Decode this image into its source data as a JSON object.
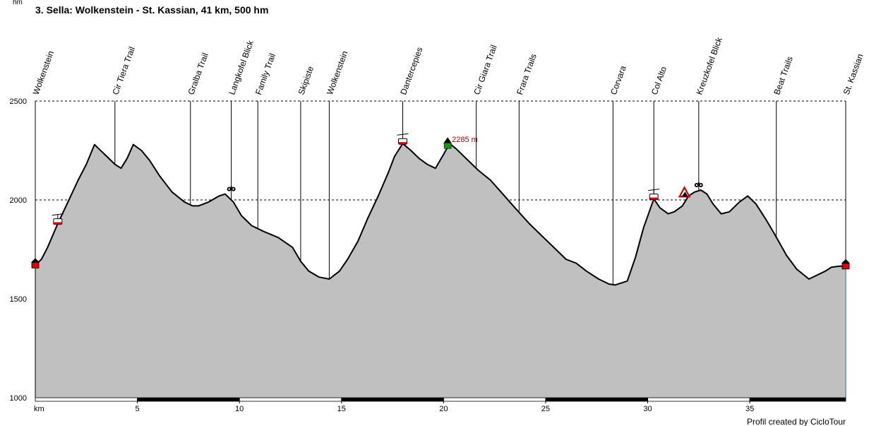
{
  "chart_data": {
    "type": "area",
    "title": "3. Sella: Wolkenstein - St. Kassian, 41 km, 500 hm",
    "ylabel": "hm",
    "xlabel": "km",
    "xlim": [
      0,
      39.7
    ],
    "ylim": [
      1000,
      2500
    ],
    "yticks": [
      1000,
      1500,
      2000,
      2500
    ],
    "xticks": [
      5,
      10,
      15,
      20,
      25,
      30,
      35
    ],
    "grid": "horizontal dashed at 1500, 2000, 2500",
    "fill_color": "#c0c0c0",
    "line_color": "#000000",
    "x": [
      0,
      0.3,
      0.6,
      1.1,
      1.6,
      2.1,
      2.5,
      2.9,
      3.1,
      3.5,
      3.9,
      4.2,
      4.5,
      4.8,
      5.2,
      5.6,
      6.1,
      6.7,
      7.3,
      7.7,
      8.0,
      8.5,
      9.0,
      9.3,
      9.7,
      10.1,
      10.6,
      11.2,
      11.9,
      12.6,
      13.0,
      13.4,
      13.9,
      14.4,
      14.9,
      15.3,
      15.8,
      16.3,
      16.8,
      17.3,
      17.6,
      18.0,
      18.4,
      18.8,
      19.2,
      19.6,
      20.0,
      20.3,
      20.6,
      21.1,
      21.7,
      22.3,
      22.9,
      23.5,
      24.2,
      24.9,
      25.5,
      26.0,
      26.5,
      27.0,
      27.6,
      28.1,
      28.4,
      29.0,
      29.4,
      29.8,
      30.3,
      30.6,
      31.0,
      31.3,
      31.7,
      32.0,
      32.3,
      32.6,
      32.9,
      33.2,
      33.6,
      34.0,
      34.5,
      34.9,
      35.3,
      35.8,
      36.2,
      36.8,
      37.3,
      37.9,
      38.3,
      38.7,
      39.0,
      39.4,
      39.7
    ],
    "y": [
      1670,
      1700,
      1760,
      1880,
      1990,
      2100,
      2180,
      2280,
      2260,
      2220,
      2180,
      2160,
      2210,
      2280,
      2250,
      2200,
      2120,
      2040,
      1990,
      1970,
      1970,
      1990,
      2020,
      2030,
      1990,
      1920,
      1870,
      1840,
      1810,
      1760,
      1690,
      1640,
      1610,
      1600,
      1640,
      1700,
      1790,
      1910,
      2020,
      2140,
      2220,
      2285,
      2250,
      2210,
      2180,
      2160,
      2230,
      2285,
      2260,
      2210,
      2150,
      2100,
      2030,
      1960,
      1880,
      1810,
      1750,
      1700,
      1680,
      1640,
      1600,
      1575,
      1570,
      1590,
      1710,
      1860,
      2005,
      1960,
      1930,
      1940,
      1970,
      2020,
      2040,
      2050,
      2030,
      1980,
      1930,
      1940,
      1990,
      2020,
      1980,
      1900,
      1830,
      1720,
      1650,
      1600,
      1620,
      1640,
      1660,
      1665,
      1665
    ],
    "waypoints": [
      {
        "km": 0.0,
        "name": "Wolkenstein"
      },
      {
        "km": 3.9,
        "name": "Cir Tiera Trail"
      },
      {
        "km": 7.6,
        "name": "Gralba Trail"
      },
      {
        "km": 9.6,
        "name": "Langkofel Blick"
      },
      {
        "km": 10.9,
        "name": "Family Trail"
      },
      {
        "km": 13.0,
        "name": "Skipiste"
      },
      {
        "km": 14.4,
        "name": "Wolkenstein"
      },
      {
        "km": 18.0,
        "name": "Dantercepies"
      },
      {
        "km": 21.6,
        "name": "Cir Giara Trail"
      },
      {
        "km": 23.7,
        "name": "Frara Trails"
      },
      {
        "km": 28.3,
        "name": "Corvara"
      },
      {
        "km": 30.3,
        "name": "Col Alto"
      },
      {
        "km": 32.5,
        "name": "Kreuzkofel Blick"
      },
      {
        "km": 36.3,
        "name": "Beat Trails"
      },
      {
        "km": 39.7,
        "name": "St. Kassian"
      }
    ],
    "annotations": [
      {
        "km": 20.2,
        "elevation": 2285,
        "text": "2285 m",
        "marker": "summit"
      }
    ],
    "markers": [
      {
        "km": 0.0,
        "elevation": 1670,
        "icon": "house-icon"
      },
      {
        "km": 1.1,
        "elevation": 1880,
        "icon": "cable-car-icon"
      },
      {
        "km": 9.6,
        "elevation": 2030,
        "icon": "binoculars-icon"
      },
      {
        "km": 18.0,
        "elevation": 2285,
        "icon": "cable-car-icon"
      },
      {
        "km": 20.2,
        "elevation": 2285,
        "icon": "summit-icon"
      },
      {
        "km": 30.3,
        "elevation": 2005,
        "icon": "cable-car-icon"
      },
      {
        "km": 31.8,
        "elevation": 2020,
        "icon": "warning-triangle-icon"
      },
      {
        "km": 32.5,
        "elevation": 2050,
        "icon": "binoculars-icon"
      },
      {
        "km": 39.7,
        "elevation": 1665,
        "icon": "house-icon"
      }
    ],
    "credit": "Profil created by CicloTour"
  }
}
